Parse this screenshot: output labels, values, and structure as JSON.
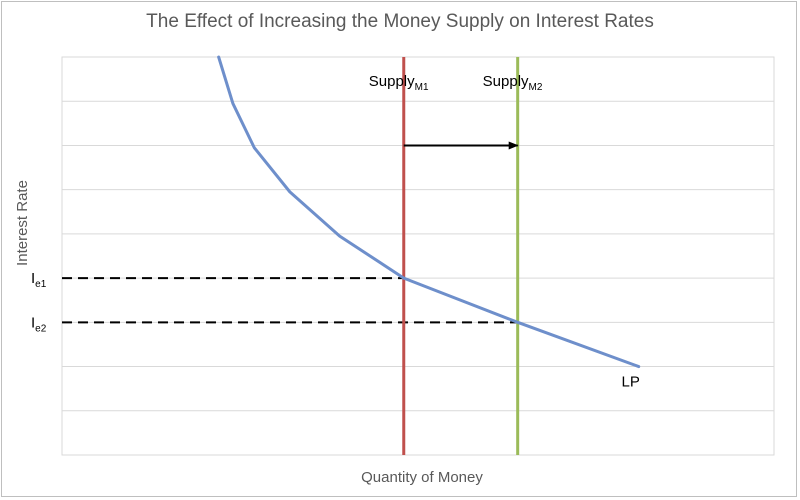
{
  "chart_data": {
    "type": "line",
    "title": "The Effect of Increasing the Money Supply on Interest Rates",
    "xlabel": "Quantity of Money",
    "ylabel": "Interest Rate",
    "xlim": [
      0,
      10
    ],
    "ylim": [
      0,
      9
    ],
    "grid": {
      "horizontal": true,
      "vertical": false
    },
    "series": [
      {
        "name": "LP",
        "color": "#6e8fcb",
        "x": [
          2.2,
          2.4,
          2.7,
          3.2,
          3.9,
          4.8,
          6.4,
          8.1
        ],
        "y": [
          9.0,
          7.95,
          6.95,
          5.95,
          4.95,
          4.0,
          3.0,
          2.0
        ]
      }
    ],
    "supply_lines": [
      {
        "base": "Supply",
        "sub": "M1",
        "x": 4.8,
        "color": "#c0504d"
      },
      {
        "base": "Supply",
        "sub": "M2",
        "x": 6.4,
        "color": "#9bbb59"
      }
    ],
    "equilibria": [
      {
        "base": "I",
        "sub": "e1",
        "y": 4.0
      },
      {
        "base": "I",
        "sub": "e2",
        "y": 3.0
      }
    ],
    "shift_arrow": {
      "from_x": 4.8,
      "to_x": 6.4,
      "y": 7.0
    },
    "curve_label": "LP"
  }
}
